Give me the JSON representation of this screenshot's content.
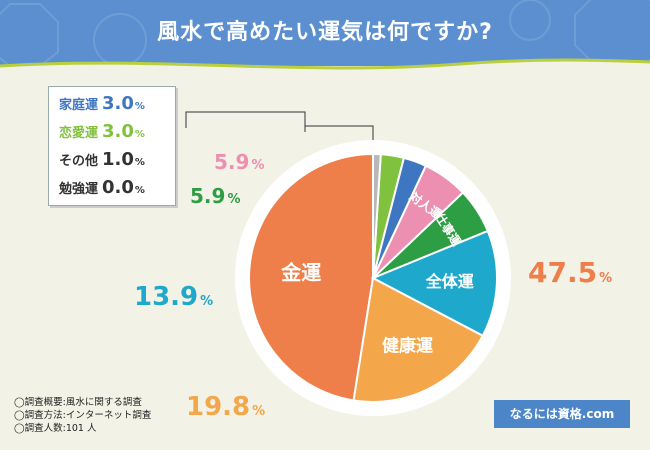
{
  "title": "風水で高めたい運気は何ですか?",
  "chart_data": {
    "type": "pie",
    "unit": "%",
    "slices": [
      {
        "label": "金運",
        "value": 47.5,
        "color": "#ee7f4b"
      },
      {
        "label": "健康運",
        "value": 19.8,
        "color": "#f4a64b"
      },
      {
        "label": "全体運",
        "value": 13.9,
        "color": "#1ea8cc"
      },
      {
        "label": "仕事運",
        "value": 5.9,
        "color": "#2e9e44"
      },
      {
        "label": "対人運",
        "value": 5.9,
        "color": "#ec8fb1"
      },
      {
        "label": "家庭運",
        "value": 3.0,
        "color": "#3f76c2"
      },
      {
        "label": "恋愛運",
        "value": 3.0,
        "color": "#80c23e"
      },
      {
        "label": "その他",
        "value": 1.0,
        "color": "#b8b8b8"
      },
      {
        "label": "勉強運",
        "value": 0.0,
        "color": "#999999"
      }
    ],
    "outside_labels": [
      {
        "slice": 0,
        "text": "47.5",
        "color": "#ee7f4b"
      },
      {
        "slice": 1,
        "text": "19.8",
        "color": "#f4a64b"
      },
      {
        "slice": 2,
        "text": "13.9",
        "color": "#1ea8cc"
      },
      {
        "slice": 3,
        "text": "5.9",
        "color": "#2e9e44"
      },
      {
        "slice": 4,
        "text": "5.9",
        "color": "#ec8fb1"
      }
    ],
    "legend_box": [
      {
        "label": "家庭運",
        "value": "3.0",
        "color": "#3f76c2"
      },
      {
        "label": "恋愛運",
        "value": "3.0",
        "color": "#80c23e"
      },
      {
        "label": "その他",
        "value": "1.0",
        "color": "#333333"
      },
      {
        "label": "勉強運",
        "value": "0.0",
        "color": "#333333"
      }
    ],
    "percent_sign": "%"
  },
  "notes": [
    "◯調査概要:風水に関する調査",
    "◯調査方法:インターネット調査",
    "◯調査人数:101 人"
  ],
  "brand": "なるには資格.com"
}
